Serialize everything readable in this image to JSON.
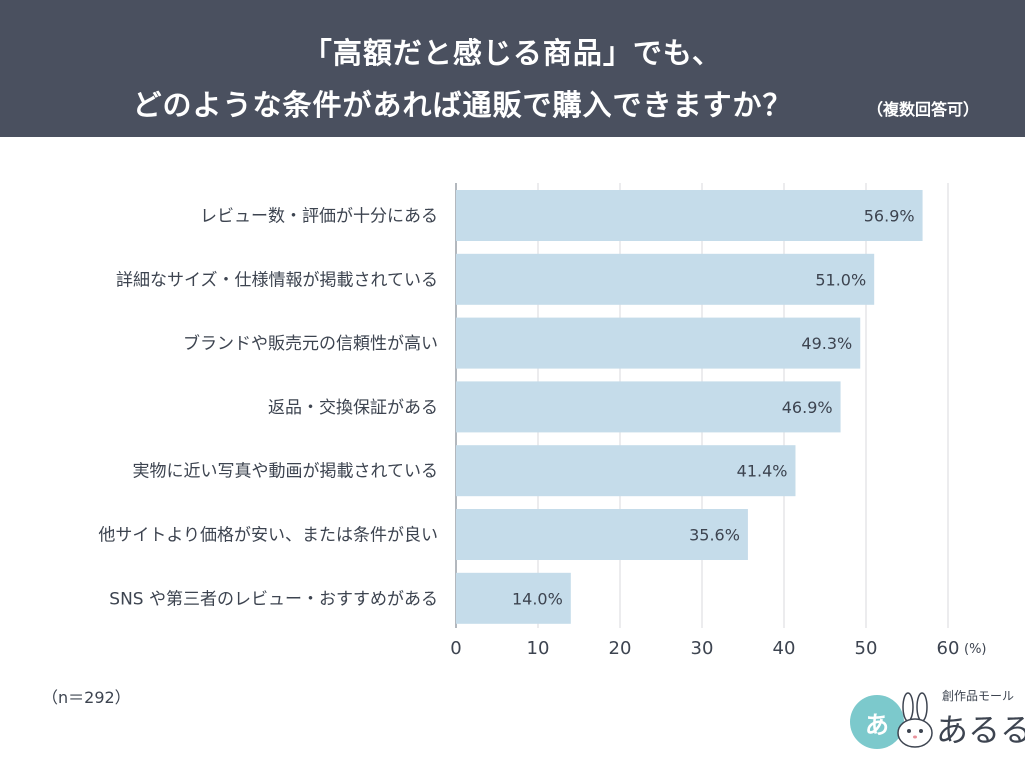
{
  "header": {
    "title_line1": "「高額だと感じる商品」でも、",
    "title_line2": "どのような条件があれば通販で購入できますか？",
    "note": "（複数回答可）"
  },
  "sample_size": "（n＝292）",
  "logo": {
    "circle_text": "あ",
    "sub": "創作品モール",
    "main": "あるる"
  },
  "colors": {
    "header_bg": "#4a505f",
    "bar": "#c5dcea",
    "text": "#3d4450",
    "logo_circle": "#7cc9cc"
  },
  "chart_data": {
    "type": "bar",
    "orientation": "horizontal",
    "categories": [
      "レビュー数・評価が十分にある",
      "詳細なサイズ・仕様情報が掲載されている",
      "ブランドや販売元の信頼性が高い",
      "返品・交換保証がある",
      "実物に近い写真や動画が掲載されている",
      "他サイトより価格が安い、または条件が良い",
      "SNS や第三者のレビュー・おすすめがある"
    ],
    "values": [
      56.9,
      51.0,
      49.3,
      46.9,
      41.4,
      35.6,
      14.0
    ],
    "value_labels": [
      "56.9%",
      "51.0%",
      "49.3%",
      "46.9%",
      "41.4%",
      "35.6%",
      "14.0%"
    ],
    "x_ticks": [
      0,
      10,
      20,
      30,
      40,
      50,
      60
    ],
    "x_unit": "(%)",
    "xlim": [
      0,
      60
    ],
    "grid": true
  }
}
